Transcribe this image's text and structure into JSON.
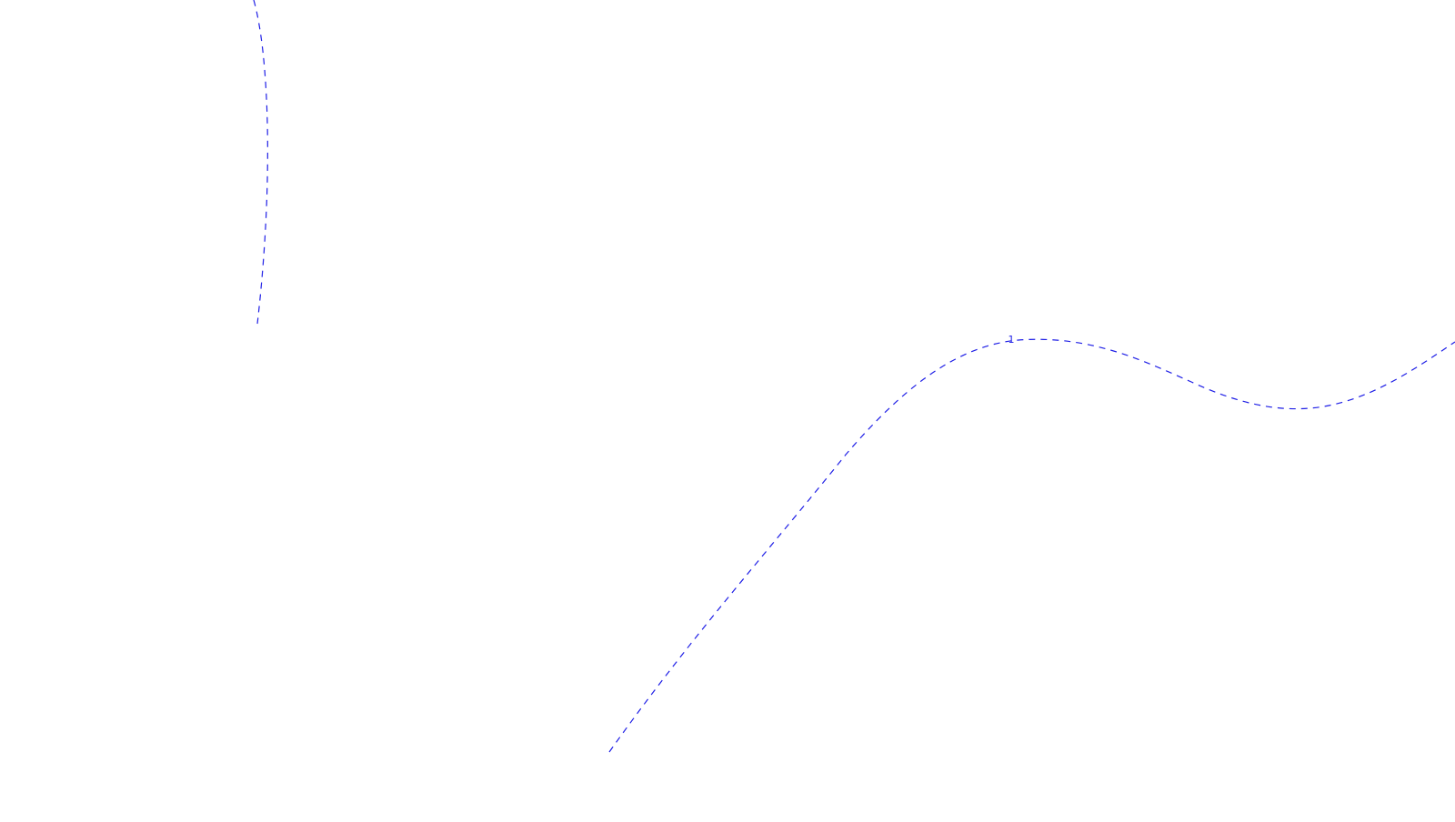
{
  "map": {
    "background_color": "#ffffff",
    "line_color": "#1f1fe6",
    "line_style": "dashed",
    "route_marker_label": "1"
  }
}
